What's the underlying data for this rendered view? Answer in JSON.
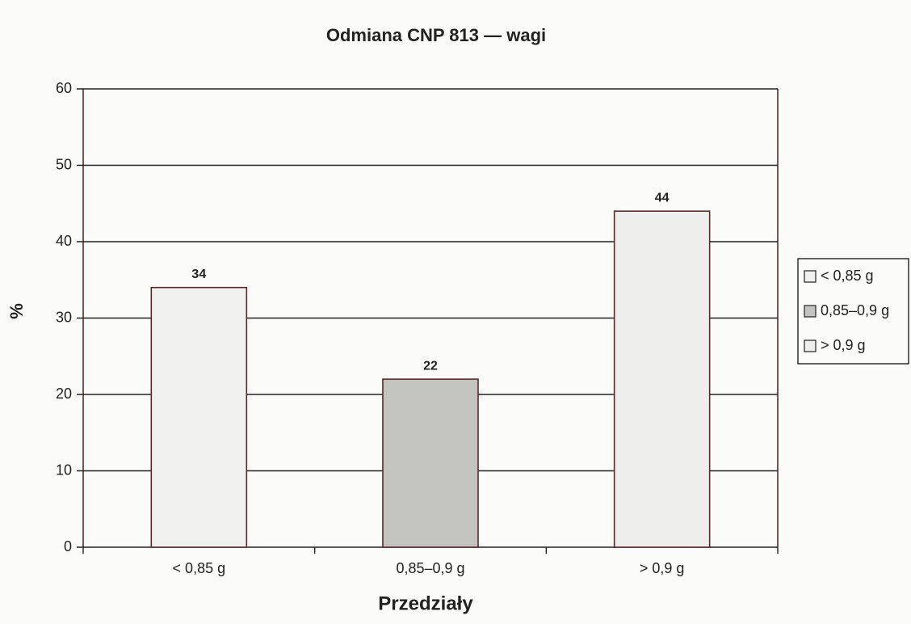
{
  "chart_data": {
    "type": "bar",
    "title": "Odmiana CNP 813 — wagi",
    "x_label": "Przedziały",
    "y_label": "%",
    "categories": [
      "< 0,85 g",
      "0,85–0,9 g",
      "> 0,9 g"
    ],
    "values": [
      34,
      22,
      44
    ],
    "colors": [
      "#f1f1ef",
      "#c3c4bf",
      "#eeeeec"
    ],
    "ylim": [
      0,
      60
    ],
    "yticks": [
      0,
      10,
      20,
      30,
      40,
      50,
      60
    ],
    "grid": true,
    "legend": "right"
  }
}
